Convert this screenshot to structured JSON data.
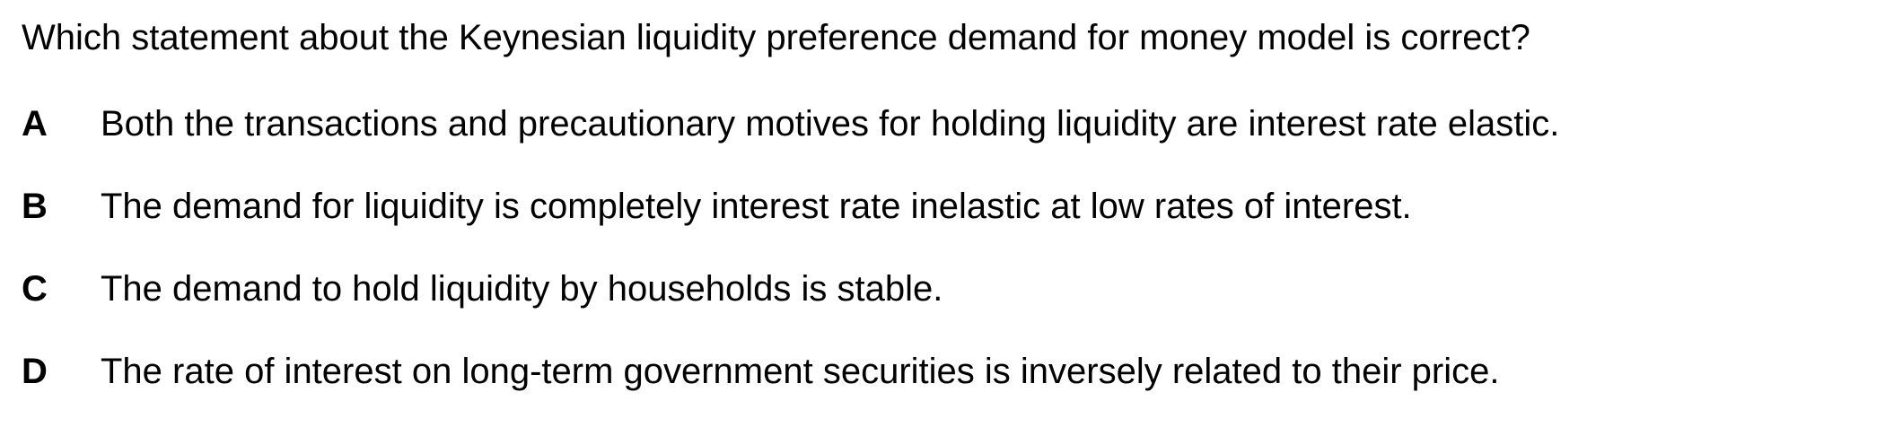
{
  "question": {
    "text": "Which statement about the Keynesian liquidity preference demand for money model is correct?"
  },
  "options": [
    {
      "letter": "A",
      "text": "Both the transactions and precautionary motives for holding liquidity are interest rate elastic."
    },
    {
      "letter": "B",
      "text": "The demand for liquidity is completely interest rate inelastic at low rates of interest."
    },
    {
      "letter": "C",
      "text": "The demand to hold liquidity by households is stable."
    },
    {
      "letter": "D",
      "text": "The rate of interest on long-term government securities is inversely related to their price."
    }
  ]
}
